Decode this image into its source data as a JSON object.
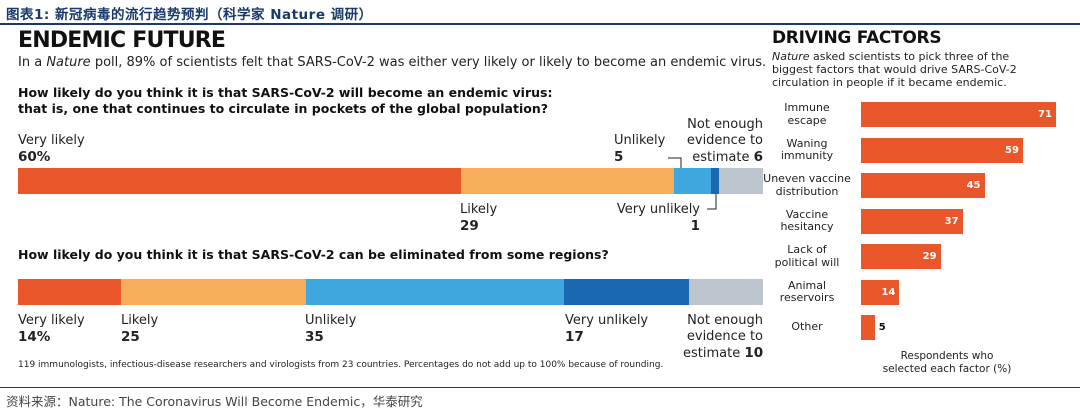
{
  "header": {
    "title": "图表1:  新冠病毒的流行趋势预判（科学家 Nature 调研）"
  },
  "footer": {
    "source": "资料来源：Nature: The Coronavirus Will Become Endemic，华泰研究"
  },
  "main": {
    "title": "ENDEMIC FUTURE",
    "subtitle_pre": "In a ",
    "subtitle_italic": "Nature",
    "subtitle_post": " poll, 89% of scientists felt that SARS-CoV-2 was either very likely or likely to become an endemic virus.",
    "note": "119 immunologists, infectious-disease researchers and virologists from 23 countries. Percentages do not add up to 100% because of rounding."
  },
  "colors": {
    "very_likely": "#e8562a",
    "likely": "#f5ac5b",
    "unlikely": "#3da7de",
    "very_unlikely": "#1a69b0",
    "not_enough": "#bcc5ce",
    "header": "#1a3a6b"
  },
  "chart_data": [
    {
      "type": "bar",
      "orientation": "horizontal-stacked",
      "title": "How likely do you think it is that SARS-CoV-2 will become an endemic virus: that is, one that continues to circulate in pockets of the global population?",
      "title_line1": "How likely do you think it is that SARS-CoV-2 will become an endemic virus:",
      "title_line2": "that is, one that continues to circulate in pockets of the global population?",
      "segments": [
        {
          "name": "Very likely",
          "value": 60,
          "label": "60%"
        },
        {
          "name": "Likely",
          "value": 29,
          "label": "29"
        },
        {
          "name": "Unlikely",
          "value": 5,
          "label": "5"
        },
        {
          "name": "Very unlikely",
          "value": 1,
          "label": "1"
        },
        {
          "name": "Not enough evidence to estimate",
          "name_line1": "Not enough",
          "name_line2": "evidence to",
          "name_line3": "estimate",
          "value": 6,
          "label": "6"
        }
      ]
    },
    {
      "type": "bar",
      "orientation": "horizontal-stacked",
      "title": "How likely do you think it is that SARS-CoV-2 can be eliminated from some regions?",
      "segments": [
        {
          "name": "Very likely",
          "value": 14,
          "label": "14%"
        },
        {
          "name": "Likely",
          "value": 25,
          "label": "25"
        },
        {
          "name": "Unlikely",
          "value": 35,
          "label": "35"
        },
        {
          "name": "Very unlikely",
          "value": 17,
          "label": "17"
        },
        {
          "name": "Not enough evidence to estimate",
          "name_line1": "Not enough",
          "name_line2": "evidence to",
          "name_line3": "estimate",
          "value": 10,
          "label": "10"
        }
      ]
    },
    {
      "type": "bar",
      "orientation": "horizontal",
      "title": "DRIVING FACTORS",
      "description_italic": "Nature",
      "description_rest": " asked scientists to pick three of the biggest factors that would drive SARS-CoV-2 circulation in people if it became endemic.",
      "xlabel": "Respondents who selected each factor (%)",
      "xlabel_line1": "Respondents who",
      "xlabel_line2": "selected each factor (%)",
      "xlim": [
        0,
        71
      ],
      "categories": [
        {
          "line1": "Immune",
          "line2": "escape"
        },
        {
          "line1": "Waning",
          "line2": "immunity"
        },
        {
          "line1": "Uneven vaccine",
          "line2": "distribution"
        },
        {
          "line1": "Vaccine",
          "line2": "hesitancy"
        },
        {
          "line1": "Lack of",
          "line2": "political will"
        },
        {
          "line1": "Animal",
          "line2": "reservoirs"
        },
        {
          "line1": "Other",
          "line2": ""
        }
      ],
      "values": [
        71,
        59,
        45,
        37,
        29,
        14,
        5
      ]
    }
  ]
}
